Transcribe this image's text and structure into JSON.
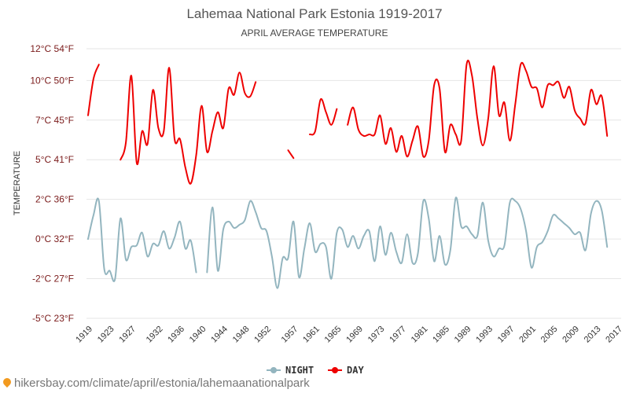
{
  "chart_data": {
    "type": "line",
    "title": "Lahemaa National Park Estonia 1919-2017",
    "subtitle": "APRIL AVERAGE TEMPERATURE",
    "ylabel": "TEMPERATURE",
    "ylim": [
      -5,
      12
    ],
    "y_ticks": [
      {
        "value": 12,
        "label": "12°C 54°F"
      },
      {
        "value": 10,
        "label": "10°C 50°F"
      },
      {
        "value": 7.5,
        "label": "7°C 45°F"
      },
      {
        "value": 5,
        "label": "5°C 41°F"
      },
      {
        "value": 2.5,
        "label": "2°C 36°F"
      },
      {
        "value": 0,
        "label": "0°C 32°F"
      },
      {
        "value": -2.5,
        "label": "-2°C 27°F"
      },
      {
        "value": -5,
        "label": "-5°C 23°F"
      }
    ],
    "xlim": [
      1919,
      2017
    ],
    "x_ticks": [
      1919,
      1923,
      1927,
      1932,
      1936,
      1940,
      1944,
      1948,
      1952,
      1957,
      1961,
      1965,
      1969,
      1973,
      1977,
      1981,
      1985,
      1989,
      1993,
      1997,
      2001,
      2005,
      2009,
      2013,
      2017
    ],
    "grid": true,
    "legend_position": "bottom-center",
    "series": [
      {
        "name": "NIGHT",
        "color": "#93b5bf",
        "points": [
          [
            1919,
            0
          ],
          [
            1920,
            1.5
          ],
          [
            1921,
            2.4
          ],
          [
            1922,
            -1.9
          ],
          [
            1923,
            -2
          ],
          [
            1924,
            -2.5
          ],
          [
            1925,
            1.3
          ],
          [
            1926,
            -1.3
          ],
          [
            1927,
            -0.5
          ],
          [
            1928,
            -0.4
          ],
          [
            1929,
            0.4
          ],
          [
            1930,
            -1.1
          ],
          [
            1931,
            -0.3
          ],
          [
            1932,
            -0.4
          ],
          [
            1933,
            0.5
          ],
          [
            1934,
            -0.6
          ],
          [
            1935,
            0.1
          ],
          [
            1936,
            1.1
          ],
          [
            1937,
            -0.6
          ],
          [
            1938,
            -0.1
          ],
          [
            1939,
            -2.1
          ],
          [
            1941,
            -2.1
          ],
          [
            1942,
            2
          ],
          [
            1943,
            -2
          ],
          [
            1944,
            0.6
          ],
          [
            1945,
            1.1
          ],
          [
            1946,
            0.7
          ],
          [
            1947,
            0.9
          ],
          [
            1948,
            1.2
          ],
          [
            1949,
            2.4
          ],
          [
            1950,
            1.7
          ],
          [
            1951,
            0.7
          ],
          [
            1952,
            0.5
          ],
          [
            1953,
            -1.1
          ],
          [
            1954,
            -3.1
          ],
          [
            1955,
            -1.2
          ],
          [
            1956,
            -1.2
          ],
          [
            1957,
            1.1
          ],
          [
            1958,
            -2.4
          ],
          [
            1959,
            -0.6
          ],
          [
            1960,
            1
          ],
          [
            1961,
            -0.8
          ],
          [
            1962,
            -0.3
          ],
          [
            1963,
            -0.5
          ],
          [
            1964,
            -2.5
          ],
          [
            1965,
            0.4
          ],
          [
            1966,
            0.6
          ],
          [
            1967,
            -0.5
          ],
          [
            1968,
            0.2
          ],
          [
            1969,
            -0.6
          ],
          [
            1970,
            0.2
          ],
          [
            1971,
            0.5
          ],
          [
            1972,
            -1.4
          ],
          [
            1973,
            0.8
          ],
          [
            1974,
            -1
          ],
          [
            1975,
            0.4
          ],
          [
            1976,
            -0.8
          ],
          [
            1977,
            -1.5
          ],
          [
            1978,
            0.3
          ],
          [
            1979,
            -1.5
          ],
          [
            1980,
            -0.9
          ],
          [
            1981,
            2.4
          ],
          [
            1982,
            1.3
          ],
          [
            1983,
            -1.4
          ],
          [
            1984,
            0.2
          ],
          [
            1985,
            -1.6
          ],
          [
            1986,
            -0.7
          ],
          [
            1987,
            2.6
          ],
          [
            1988,
            0.8
          ],
          [
            1989,
            0.8
          ],
          [
            1990,
            0.3
          ],
          [
            1991,
            0.2
          ],
          [
            1992,
            2.3
          ],
          [
            1993,
            -0.1
          ],
          [
            1994,
            -1.1
          ],
          [
            1995,
            -0.6
          ],
          [
            1996,
            -0.4
          ],
          [
            1997,
            2.3
          ],
          [
            1998,
            2.4
          ],
          [
            1999,
            1.9
          ],
          [
            2000,
            0.5
          ],
          [
            2001,
            -1.8
          ],
          [
            2002,
            -0.5
          ],
          [
            2003,
            -0.2
          ],
          [
            2004,
            0.5
          ],
          [
            2005,
            1.5
          ],
          [
            2006,
            1.3
          ],
          [
            2007,
            1
          ],
          [
            2008,
            0.7
          ],
          [
            2009,
            0.3
          ],
          [
            2010,
            0.4
          ],
          [
            2011,
            -0.7
          ],
          [
            2012,
            1.6
          ],
          [
            2013,
            2.4
          ],
          [
            2014,
            1.8
          ],
          [
            2015,
            -0.5
          ]
        ]
      },
      {
        "name": "DAY",
        "color": "#ee0000",
        "points": [
          [
            1919,
            7.8
          ],
          [
            1920,
            10.1
          ],
          [
            1921,
            11
          ],
          [
            1925,
            5
          ],
          [
            1926,
            6.1
          ],
          [
            1927,
            10.3
          ],
          [
            1928,
            4.8
          ],
          [
            1929,
            6.8
          ],
          [
            1930,
            6
          ],
          [
            1931,
            9.4
          ],
          [
            1932,
            7
          ],
          [
            1933,
            6.8
          ],
          [
            1934,
            10.8
          ],
          [
            1935,
            6.3
          ],
          [
            1936,
            6.3
          ],
          [
            1937,
            4.5
          ],
          [
            1938,
            3.5
          ],
          [
            1939,
            5.3
          ],
          [
            1940,
            8.4
          ],
          [
            1941,
            5.5
          ],
          [
            1942,
            6.8
          ],
          [
            1943,
            8
          ],
          [
            1944,
            7
          ],
          [
            1945,
            9.5
          ],
          [
            1946,
            9.1
          ],
          [
            1947,
            10.5
          ],
          [
            1948,
            9.2
          ],
          [
            1949,
            9
          ],
          [
            1950,
            9.9
          ],
          [
            1956,
            5.6
          ],
          [
            1957,
            5.1
          ],
          [
            1960,
            6.6
          ],
          [
            1961,
            6.8
          ],
          [
            1962,
            8.8
          ],
          [
            1963,
            8
          ],
          [
            1964,
            7.2
          ],
          [
            1965,
            8.2
          ],
          [
            1967,
            7.2
          ],
          [
            1968,
            8.3
          ],
          [
            1969,
            6.9
          ],
          [
            1970,
            6.5
          ],
          [
            1971,
            6.6
          ],
          [
            1972,
            6.6
          ],
          [
            1973,
            7.8
          ],
          [
            1974,
            6
          ],
          [
            1975,
            7
          ],
          [
            1976,
            5.5
          ],
          [
            1977,
            6.5
          ],
          [
            1978,
            5.2
          ],
          [
            1979,
            6.2
          ],
          [
            1980,
            7.1
          ],
          [
            1981,
            5.2
          ],
          [
            1982,
            6.2
          ],
          [
            1983,
            9.7
          ],
          [
            1984,
            9.5
          ],
          [
            1985,
            5.5
          ],
          [
            1986,
            7.2
          ],
          [
            1987,
            6.6
          ],
          [
            1988,
            6.2
          ],
          [
            1989,
            11
          ],
          [
            1990,
            10.3
          ],
          [
            1991,
            7.6
          ],
          [
            1992,
            5.9
          ],
          [
            1993,
            7.6
          ],
          [
            1994,
            10.9
          ],
          [
            1995,
            7.8
          ],
          [
            1996,
            8.6
          ],
          [
            1997,
            6.2
          ],
          [
            1998,
            8.5
          ],
          [
            1999,
            11
          ],
          [
            2000,
            10.6
          ],
          [
            2001,
            9.6
          ],
          [
            2002,
            9.5
          ],
          [
            2003,
            8.3
          ],
          [
            2004,
            9.7
          ],
          [
            2005,
            9.7
          ],
          [
            2006,
            9.9
          ],
          [
            2007,
            8.9
          ],
          [
            2008,
            9.6
          ],
          [
            2009,
            8.1
          ],
          [
            2010,
            7.6
          ],
          [
            2011,
            7.3
          ],
          [
            2012,
            9.4
          ],
          [
            2013,
            8.5
          ],
          [
            2014,
            9
          ],
          [
            2015,
            6.5
          ]
        ]
      }
    ]
  },
  "footer": {
    "url": "hikersbay.com/climate/april/estonia/lahemaanationalpark"
  }
}
